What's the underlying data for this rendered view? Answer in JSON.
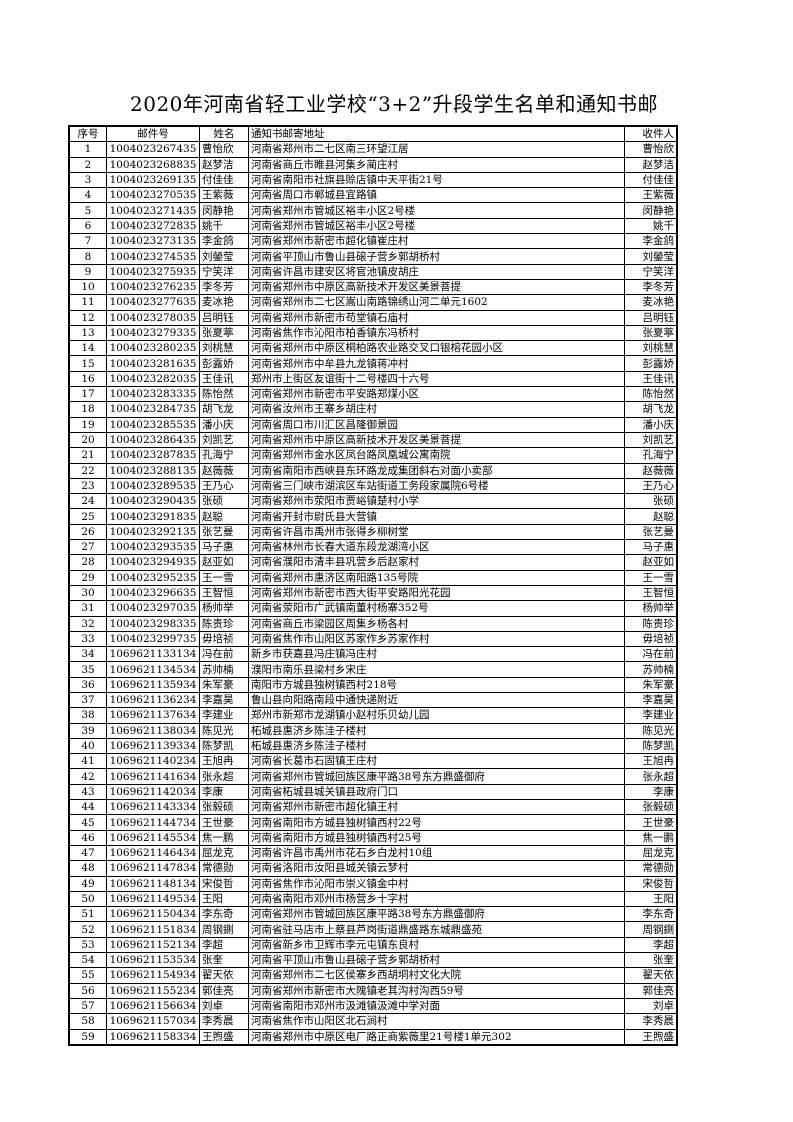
{
  "title": "2020年河南省轻工业学校“3+2”升段学生名单和通知书邮",
  "columns": [
    "序号",
    "邮件号",
    "姓名",
    "通知书邮寄地址",
    "收件人"
  ],
  "rows": [
    [
      "1",
      "1004023267435",
      "曹怡欣",
      "河南省郑州市二七区南三环望江居",
      "曹怡欣"
    ],
    [
      "2",
      "1004023268835",
      "赵梦洁",
      "河南省商丘市睢县河集乡蔺庄村",
      "赵梦洁"
    ],
    [
      "3",
      "1004023269135",
      "付佳佳",
      "河南省南阳市社旗县赊店镇中天平街21号",
      "付佳佳"
    ],
    [
      "4",
      "1004023270535",
      "王紫薇",
      "河南省周口市郸城县宜路镇",
      "王紫薇"
    ],
    [
      "5",
      "1004023271435",
      "闵静艳",
      "河南省郑州市管城区裕丰小区2号楼",
      "闵静艳"
    ],
    [
      "6",
      "1004023272835",
      "姚千",
      "河南省郑州市管城区裕丰小区2号楼",
      "姚千"
    ],
    [
      "7",
      "1004023273135",
      "李金鸽",
      "河南省郑州市新密市超化镇崔庄村",
      "李金鸽"
    ],
    [
      "8",
      "1004023274535",
      "刘鎣莹",
      "河南省平顶山市鲁山县磙子营乡郭胡桥村",
      "刘鎣莹"
    ],
    [
      "9",
      "1004023275935",
      "宁笑洋",
      "河南省许昌市建安区将官池镇皮胡庄",
      "宁笑洋"
    ],
    [
      "10",
      "1004023276235",
      "李冬芳",
      "河南省郑州市中原区高新技术开发区美景菩提",
      "李冬芳"
    ],
    [
      "11",
      "1004023277635",
      "麦冰艳",
      "河南省郑州市二七区嵩山南路锦绣山河二单元1602",
      "麦冰艳"
    ],
    [
      "12",
      "1004023278035",
      "吕明钰",
      "河南省郑州市新密市苟堂镇石庙村",
      "吕明钰"
    ],
    [
      "13",
      "1004023279335",
      "张夏葶",
      "河南省焦作市沁阳市柏香镇东冯桥村",
      "张夏葶"
    ],
    [
      "14",
      "1004023280235",
      "刘桃慧",
      "河南省郑州市中原区桐柏路农业路交叉口银榕花园小区",
      "刘桃慧"
    ],
    [
      "15",
      "1004023281635",
      "彭露娇",
      "河南省郑州市中牟县九龙镇蒋冲村",
      "彭露娇"
    ],
    [
      "16",
      "1004023282035",
      "王佳讯",
      "郑州市上街区友谊街十二号楼四十六号",
      "王佳讯"
    ],
    [
      "17",
      "1004023283335",
      "陈怡然",
      "河南省郑州市新密市平安路郑煤小区",
      "陈怡然"
    ],
    [
      "18",
      "1004023284735",
      "胡飞龙",
      "河南省汝州市王寨乡胡庄村",
      "胡飞龙"
    ],
    [
      "19",
      "1004023285535",
      "潘小庆",
      "河南省周口市川汇区昌隆御景园",
      "潘小庆"
    ],
    [
      "20",
      "1004023286435",
      "刘凯艺",
      "河南省郑州市中原区高新技术开发区美景菩提",
      "刘凯艺"
    ],
    [
      "21",
      "1004023287835",
      "孔海宁",
      "河南省郑州市金水区凤台路凤凰城公寓南院",
      "孔海宁"
    ],
    [
      "22",
      "1004023288135",
      "赵薇薇",
      "河南省南阳市西峡县东环路龙成集团斜右对面小卖部",
      "赵薇薇"
    ],
    [
      "23",
      "1004023289535",
      "王乃心",
      "河南省三门峡市湖滨区车站街道工务段家属院6号楼",
      "王乃心"
    ],
    [
      "24",
      "1004023290435",
      "张硕",
      "河南省郑州市荥阳市贾峪镇楚村小学",
      "张硕"
    ],
    [
      "25",
      "1004023291835",
      "赵聪",
      "河南省开封市尉氏县大营镇",
      "赵聪"
    ],
    [
      "26",
      "1004023292135",
      "张艺曼",
      "河南省许昌市禹州市张得乡柳树堂",
      "张艺曼"
    ],
    [
      "27",
      "1004023293535",
      "马子惠",
      "河南省林州市长春大道东段龙湖湾小区",
      "马子惠"
    ],
    [
      "28",
      "1004023294935",
      "赵亚如",
      "河南省濮阳市清丰县巩营乡后赵家村",
      "赵亚如"
    ],
    [
      "29",
      "1004023295235",
      "王一雪",
      "河南省郑州市惠济区南阳路135号院",
      "王一雪"
    ],
    [
      "30",
      "1004023296635",
      "王智恒",
      "河南省郑州市新密市西大街平安路阳光花园",
      "王智恒"
    ],
    [
      "31",
      "1004023297035",
      "杨帅举",
      "河南省荥阳市广武镇南董村杨寨352号",
      "杨帅举"
    ],
    [
      "32",
      "1004023298335",
      "陈贵珍",
      "河南省商丘市梁园区周集乡杨各村",
      "陈贵珍"
    ],
    [
      "33",
      "1004023299735",
      "毋培祯",
      "河南省焦作市山阳区苏家作乡苏家作村",
      "毋培祯"
    ],
    [
      "34",
      "1069621133134",
      "冯在前",
      "新乡市获嘉县冯庄镇冯庄村",
      "冯在前"
    ],
    [
      "35",
      "1069621134534",
      "苏帅楠",
      "濮阳市南乐县梁村乡宋庄",
      "苏帅楠"
    ],
    [
      "36",
      "1069621135934",
      "朱军豪",
      "南阳市方城县独树镇西村218号",
      "朱军豪"
    ],
    [
      "37",
      "1069621136234",
      "李嘉昊",
      "鲁山县向阳路南段中通快递附近",
      "李嘉昊"
    ],
    [
      "38",
      "1069621137634",
      "李建业",
      "郑州市新郑市龙湖镇小赵村乐贝幼儿园",
      "李建业"
    ],
    [
      "39",
      "1069621138034",
      "陈见光",
      "柘城县惠济乡陈洼子楼村",
      "陈见光"
    ],
    [
      "40",
      "1069621139334",
      "陈梦凯",
      "柘城县惠济乡陈洼子楼村",
      "陈梦凯"
    ],
    [
      "41",
      "1069621140234",
      "王旭冉",
      "河南省长葛市石固镇王庄村",
      "王旭冉"
    ],
    [
      "42",
      "1069621141634",
      "张永超",
      "河南省郑州市管城回族区康平路38号东方鼎盛御府",
      "张永超"
    ],
    [
      "43",
      "1069621142034",
      "李康",
      "河南省柘城县城关镇县政府门口",
      "李康"
    ],
    [
      "44",
      "1069621143334",
      "张毅硕",
      "河南省郑州市新密市超化镇王村",
      "张毅硕"
    ],
    [
      "45",
      "1069621144734",
      "王世豪",
      "河南省南阳市方城县独树镇西村22号",
      "王世豪"
    ],
    [
      "46",
      "1069621145534",
      "焦一鹏",
      "河南省南阳市方城县独树镇西村25号",
      "焦一鹏"
    ],
    [
      "47",
      "1069621146434",
      "屈龙克",
      "河南省许昌市禹州市花石乡白龙村10组",
      "屈龙克"
    ],
    [
      "48",
      "1069621147834",
      "常德勋",
      "河南省洛阳市汝阳县城关镇云梦村",
      "常德勋"
    ],
    [
      "49",
      "1069621148134",
      "宋俊哲",
      "河南省焦作市沁阳市崇义镇金中村",
      "宋俊哲"
    ],
    [
      "50",
      "1069621149534",
      "王阳",
      "河南省南阳市邓州市杨营乡十字村",
      "王阳"
    ],
    [
      "51",
      "1069621150434",
      "李东奇",
      "河南省郑州市管城回族区康平路38号东方鼎盛御府",
      "李东奇"
    ],
    [
      "52",
      "1069621151834",
      "周钢鍘",
      "河南省驻马店市上蔡县芦岗街道鼎盛路东城鼎盛苑",
      "周钢鍘"
    ],
    [
      "53",
      "1069621152134",
      "李超",
      "河南省新乡市卫辉市李元屯镇东良村",
      "李超"
    ],
    [
      "54",
      "1069621153534",
      "张奎",
      "河南省平顶山市鲁山县磙子营乡郭胡桥村",
      "张奎"
    ],
    [
      "55",
      "1069621154934",
      "翟天依",
      "河南省郑州市二七区侯寨乡西胡垌村文化大院",
      "翟天依"
    ],
    [
      "56",
      "1069621155234",
      "郭佳亮",
      "河南省郑州市新密市大隗镇老其沟村沟西59号",
      "郭佳亮"
    ],
    [
      "57",
      "1069621156634",
      "刘卓",
      "河南省南阳市邓州市汲滩镇汲滩中学对面",
      "刘卓"
    ],
    [
      "58",
      "1069621157034",
      "李秀晨",
      "河南省焦作市山阳区北石涧村",
      "李秀晨"
    ],
    [
      "59",
      "1069621158334",
      "王煦盛",
      "河南省郑州市中原区电厂路正商紫薇里21号楼1单元302",
      "王煦盛"
    ]
  ]
}
